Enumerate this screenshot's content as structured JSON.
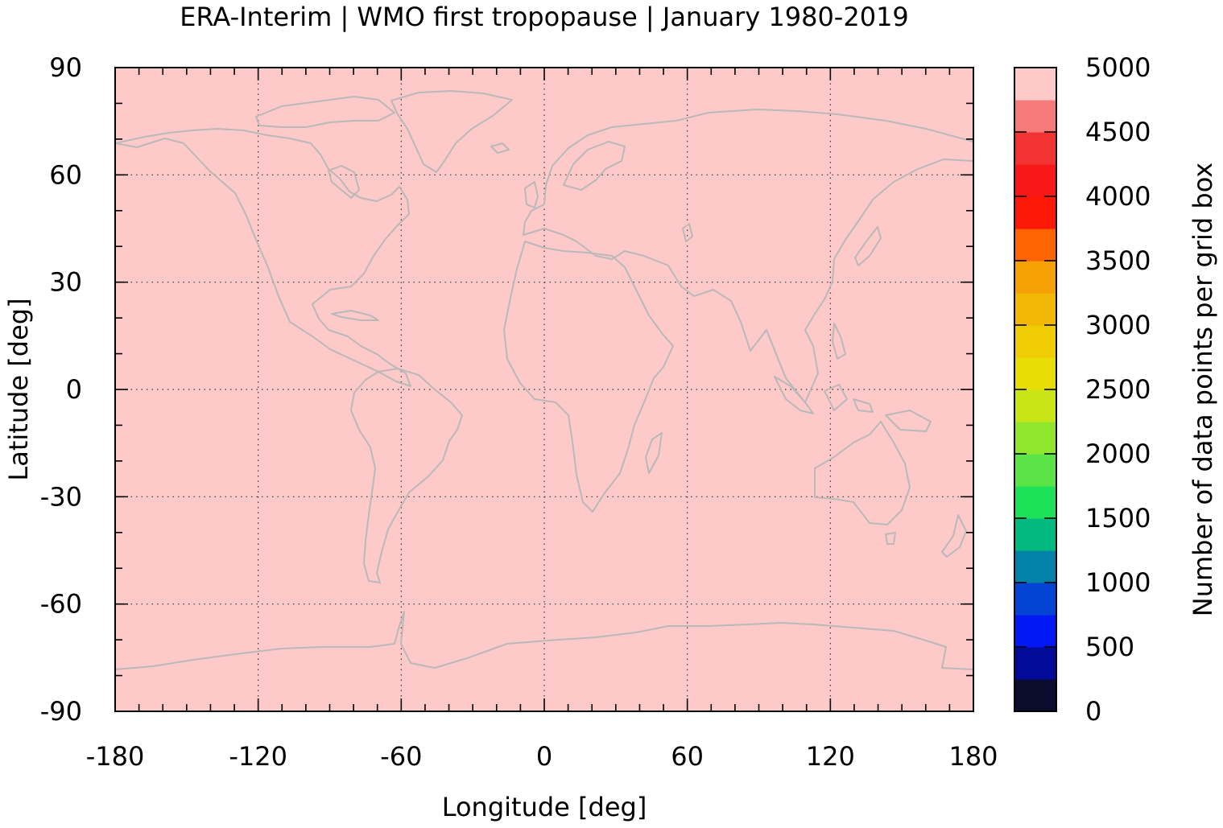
{
  "map": {
    "title": "ERA-Interim | WMO first tropopause | January 1980-2019",
    "xlabel": "Longitude [deg]",
    "ylabel": "Latitude [deg]",
    "colorbar_label": "Number of data points per grid box",
    "xlim": [
      -180,
      180
    ],
    "ylim": [
      -90,
      90
    ],
    "x_ticks": [
      -180,
      -120,
      -60,
      0,
      60,
      120,
      180
    ],
    "x_tick_labels": [
      "-180",
      "-120",
      "-60",
      "0",
      "60",
      "120",
      "180"
    ],
    "y_ticks": [
      -90,
      -60,
      -30,
      0,
      30,
      60,
      90
    ],
    "y_tick_labels": [
      "-90",
      "-60",
      "-30",
      "0",
      "30",
      "60",
      "90"
    ],
    "grid": true,
    "field_value": 5000,
    "field_color": "#fec9c9",
    "coastline_color": "#b9b9b9"
  },
  "colorbar": {
    "range": [
      0,
      5000
    ],
    "step": 250,
    "tick_values": [
      0,
      500,
      1000,
      1500,
      2000,
      2500,
      3000,
      3500,
      4000,
      4500,
      5000
    ],
    "tick_labels": [
      "0",
      "500",
      "1000",
      "1500",
      "2000",
      "2500",
      "3000",
      "3500",
      "4000",
      "4500",
      "5000"
    ],
    "colors": [
      "#0b0c2e",
      "#020a99",
      "#0219f5",
      "#0344d4",
      "#0381a8",
      "#04b97f",
      "#1ee15a",
      "#5ae445",
      "#90e52d",
      "#c9e516",
      "#e8de06",
      "#efcc05",
      "#f3b705",
      "#f7a006",
      "#fe6403",
      "#fd1706",
      "#f81818",
      "#f33232",
      "#f67a7a",
      "#fec9c9"
    ]
  }
}
